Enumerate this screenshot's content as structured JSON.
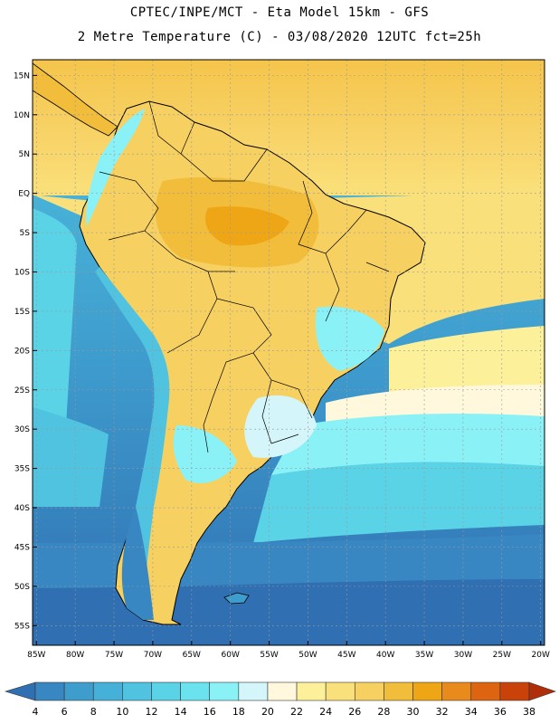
{
  "header": {
    "line1": "CPTEC/INPE/MCT -  Eta Model 15km - GFS",
    "line2": "2 Metre Temperature (C) - 03/08/2020 12UTC fct=25h"
  },
  "map": {
    "lat_labels": [
      "15N",
      "10N",
      "5N",
      "EQ",
      "5S",
      "10S",
      "15S",
      "20S",
      "25S",
      "30S",
      "35S",
      "40S",
      "45S",
      "50S",
      "55S"
    ],
    "lon_labels": [
      "85W",
      "80W",
      "75W",
      "70W",
      "65W",
      "60W",
      "55W",
      "50W",
      "45W",
      "40W",
      "35W",
      "30W",
      "25W",
      "20W"
    ],
    "lat_range": [
      17,
      -57.5
    ],
    "lon_range": [
      -85.5,
      -19.5
    ]
  },
  "legend": {
    "labels": [
      "4",
      "6",
      "8",
      "10",
      "12",
      "14",
      "16",
      "18",
      "20",
      "22",
      "24",
      "26",
      "28",
      "30",
      "32",
      "34",
      "36",
      "38"
    ],
    "colors": [
      "#2f6fb2",
      "#3887c2",
      "#3f9dce",
      "#46b1d8",
      "#4fc3df",
      "#5ad3e6",
      "#6ae3ee",
      "#8af2f6",
      "#d4f6fb",
      "#fff8dc",
      "#fdf09a",
      "#fae07a",
      "#f7d062",
      "#f1bd3a",
      "#eea616",
      "#e88a1c",
      "#dd6410",
      "#c8420a",
      "#b02e0a"
    ]
  }
}
